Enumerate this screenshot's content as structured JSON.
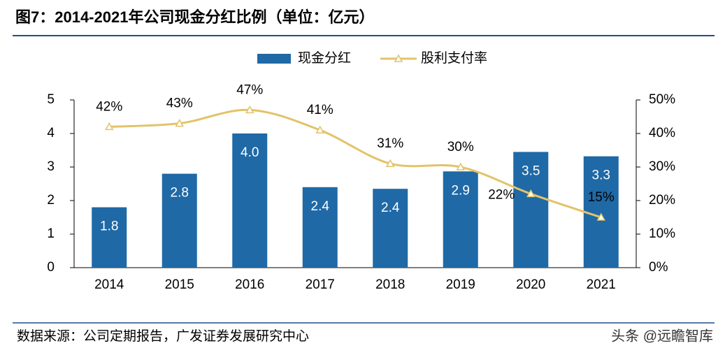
{
  "chart_data": {
    "type": "bar-line",
    "title": "图7：2014-2021年公司现金分红比例（单位：亿元）",
    "categories": [
      "2014",
      "2015",
      "2016",
      "2017",
      "2018",
      "2019",
      "2020",
      "2021"
    ],
    "series": [
      {
        "name": "现金分红",
        "type": "bar",
        "color": "#1f69a6",
        "values": [
          1.8,
          2.8,
          4.0,
          2.4,
          2.35,
          2.87,
          3.45,
          3.32
        ],
        "value_labels": [
          "1.8",
          "2.8",
          "4.0",
          "2.4",
          "2.4",
          "2.9",
          "3.5",
          "3.3"
        ]
      },
      {
        "name": "股利支付率",
        "type": "line",
        "axis": "y2",
        "color": "#e2c36a",
        "values": [
          42,
          43,
          47,
          41,
          31,
          30,
          22,
          15
        ],
        "value_labels": [
          "42%",
          "43%",
          "47%",
          "41%",
          "31%",
          "30%",
          "22%",
          "15%"
        ]
      }
    ],
    "ylim": [
      0,
      5
    ],
    "yticks": [
      0,
      1,
      2,
      3,
      4,
      5
    ],
    "y2lim": [
      0,
      50
    ],
    "y2ticks": [
      {
        "value": 0,
        "label": "0%"
      },
      {
        "value": 10,
        "label": "10%"
      },
      {
        "value": 20,
        "label": "20%"
      },
      {
        "value": 30,
        "label": "30%"
      },
      {
        "value": 40,
        "label": "40%"
      },
      {
        "value": 50,
        "label": "50%"
      }
    ],
    "legend": "top",
    "source": "数据来源：公司定期报告，广发证券发展研究中心",
    "watermark": "头条 @远瞻智库"
  }
}
